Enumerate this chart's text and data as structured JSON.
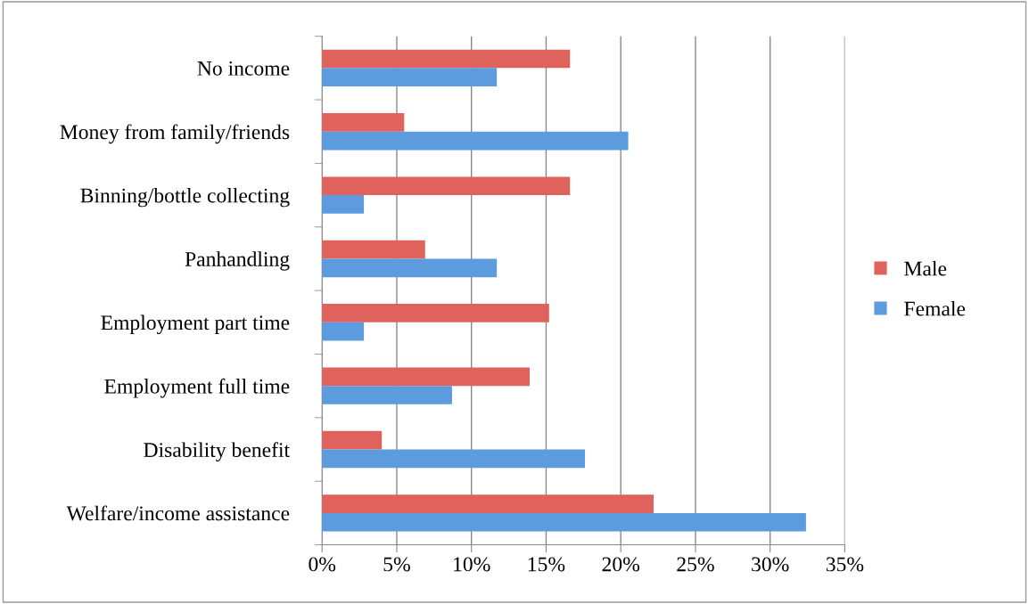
{
  "chart_data": {
    "type": "bar",
    "orientation": "horizontal",
    "categories": [
      "No income",
      "Money from family/friends",
      "Binning/bottle collecting",
      "Panhandling",
      "Employment part time",
      "Employment full time",
      "Disability benefit",
      "Welfare/income assistance"
    ],
    "series": [
      {
        "name": "Male",
        "color": "#e0625c",
        "values": [
          16.6,
          5.5,
          16.6,
          6.9,
          15.2,
          13.9,
          4.0,
          22.2
        ]
      },
      {
        "name": "Female",
        "color": "#5b9bde",
        "values": [
          11.7,
          20.5,
          2.8,
          11.7,
          2.8,
          8.7,
          17.6,
          32.4
        ]
      }
    ],
    "xlim": [
      0,
      35
    ],
    "xticks": [
      {
        "value": 0,
        "label": "0%"
      },
      {
        "value": 5,
        "label": "5%"
      },
      {
        "value": 10,
        "label": "10%"
      },
      {
        "value": 15,
        "label": "15%"
      },
      {
        "value": 20,
        "label": "20%"
      },
      {
        "value": 25,
        "label": "25%"
      },
      {
        "value": 30,
        "label": "30%"
      },
      {
        "value": 35,
        "label": "35%"
      }
    ],
    "grid": "x",
    "legend": "right"
  }
}
